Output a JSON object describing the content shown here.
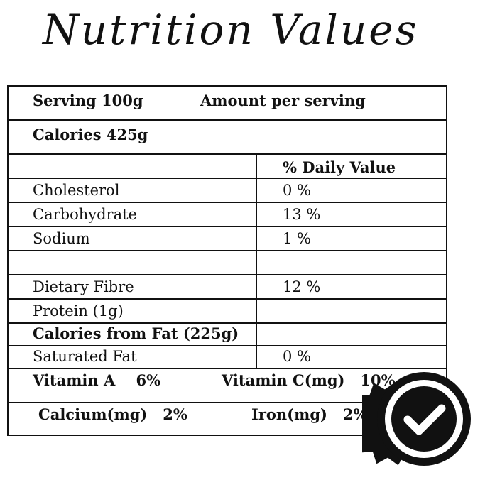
{
  "title": "Nutrition Values",
  "header": {
    "serving": "Serving  100g",
    "amount": "Amount per serving"
  },
  "calories": "Calories 425g",
  "daily_value_header": "% Daily Value",
  "rows": [
    {
      "label": "Cholesterol",
      "value": "0 %"
    },
    {
      "label": "Carbohydrate",
      "value": "13 %"
    },
    {
      "label": "Sodium",
      "value": "1 %"
    },
    {
      "label": "",
      "value": ""
    },
    {
      "label": "Dietary Fibre",
      "value": "12 %"
    },
    {
      "label": "Protein (1g)",
      "value": ""
    },
    {
      "label": "Calories from Fat (225g)",
      "value": ""
    },
    {
      "label": "Saturated Fat",
      "value": "0 %"
    }
  ],
  "vitamins": {
    "a": "Vitamin A    6%",
    "c": "Vitamin C(mg)   10%"
  },
  "minerals": {
    "calcium": "Calcium(mg)   2%",
    "iron": "Iron(mg)   2%"
  },
  "badge": {
    "icon": "check-badge-icon",
    "color": "#111111"
  }
}
